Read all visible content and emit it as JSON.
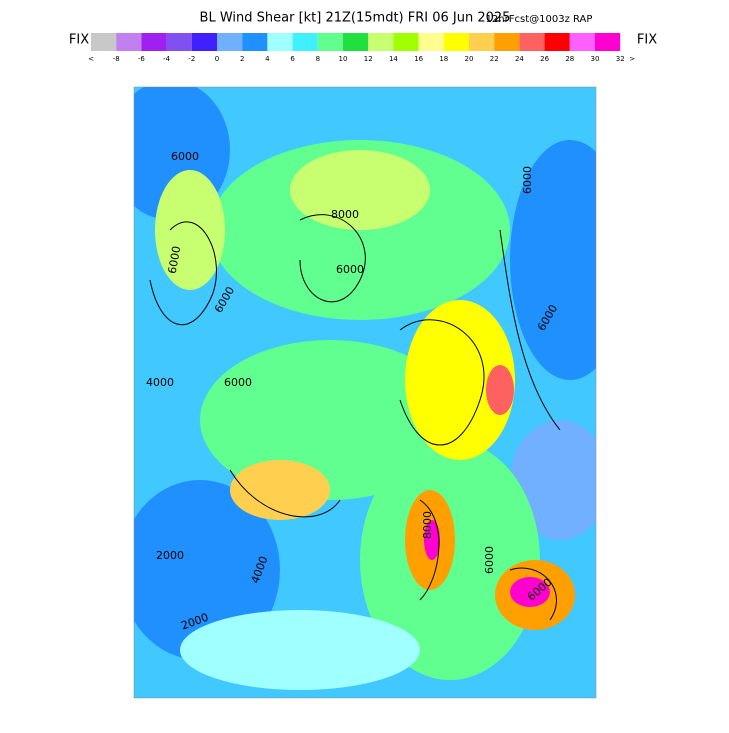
{
  "header": {
    "title": "BL Wind Shear [kt] 21Z(15mdt) FRI 06 Jun 2025",
    "subtitle": "12hrFcst@1003z RAP",
    "left_button": "FIX",
    "right_button": "FIX"
  },
  "colorbar": {
    "low_end": "<",
    "high_end": ">",
    "labels": [
      "-8",
      "-6",
      "-4",
      "-2",
      "0",
      "2",
      "4",
      "6",
      "8",
      "10",
      "12",
      "14",
      "16",
      "18",
      "20",
      "22",
      "24",
      "26",
      "28",
      "30",
      "32"
    ],
    "colors": [
      "#c8c8c8",
      "#c080f0",
      "#a020f0",
      "#8050f0",
      "#4020ff",
      "#70b0ff",
      "#2090ff",
      "#a0ffff",
      "#40f0ff",
      "#60ff90",
      "#20e040",
      "#c8ff70",
      "#a0ff00",
      "#ffff90",
      "#ffff00",
      "#ffd050",
      "#ffa000",
      "#ff6060",
      "#ff0000",
      "#ff60ff",
      "#ff00d0"
    ]
  },
  "map": {
    "contour_labels": [
      "6000",
      "6000",
      "6000",
      "8000",
      "6000",
      "4000",
      "6000",
      "6000",
      "6000",
      "8000",
      "6000",
      "2000",
      "2000",
      "4000",
      "6000"
    ]
  }
}
